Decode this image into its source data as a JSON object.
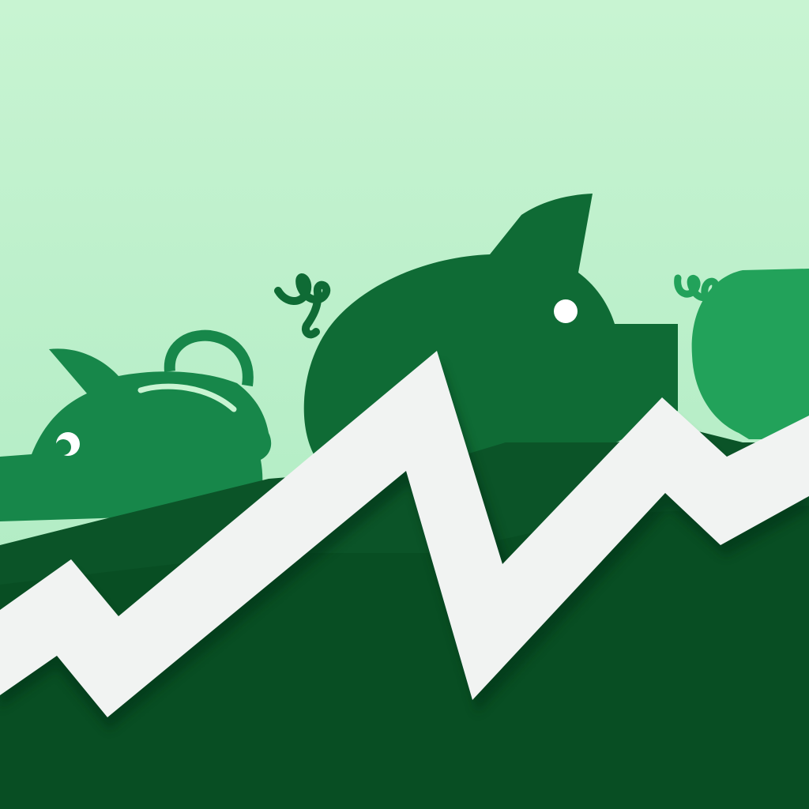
{
  "scene": {
    "subject": "piggy-banks-with-rising-arrow",
    "colors": {
      "sky_top": "#c8f4d2",
      "sky_bottom": "#a9e9bf",
      "pig_back_right": "#22a25a",
      "pig_mid": "#17874a",
      "pig_big": "#0f6b35",
      "ground": "#0b5428",
      "ground_dark": "#08481f",
      "arrow": "#f1f3f2",
      "arrow_shadow": "#063318",
      "eye": "#ffffff"
    },
    "icons": [
      "piggy-bank-icon",
      "rising-trend-arrow-icon"
    ]
  }
}
